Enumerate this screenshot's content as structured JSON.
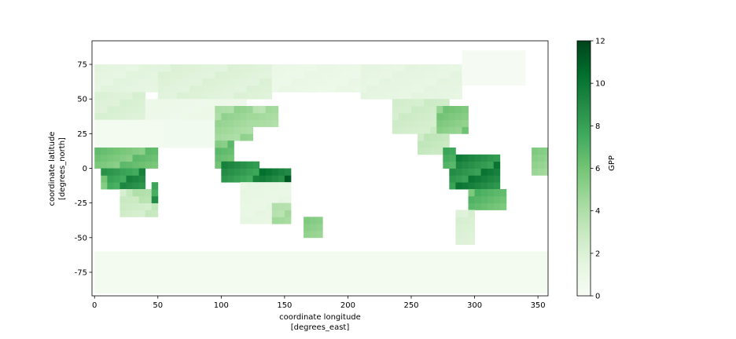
{
  "chart_data": {
    "type": "heatmap",
    "title": "",
    "xlabel_line1": "coordinate longitude",
    "xlabel_line2": "[degrees_east]",
    "ylabel_line1": "coordinate latitude",
    "ylabel_line2": "[degrees_north]",
    "xlim": [
      -2,
      358
    ],
    "ylim": [
      -92,
      92
    ],
    "xticks": [
      0,
      50,
      100,
      150,
      200,
      250,
      300,
      350
    ],
    "yticks": [
      -75,
      -50,
      -25,
      0,
      25,
      50,
      75
    ],
    "colorbar": {
      "label": "GPP",
      "vmin": 0,
      "vmax": 12,
      "ticks": [
        0,
        2,
        4,
        6,
        8,
        10,
        12
      ],
      "cmap": "Greens"
    },
    "grid": false,
    "cell_size_deg": [
      5,
      5
    ],
    "regions": [
      {
        "lon": [
          0,
          360
        ],
        "lat": [
          -90,
          -60
        ],
        "gpp": 0.3
      },
      {
        "lon": [
          0,
          50
        ],
        "lat": [
          55,
          75
        ],
        "gpp": 1.5
      },
      {
        "lon": [
          50,
          140
        ],
        "lat": [
          50,
          75
        ],
        "gpp": 1.8
      },
      {
        "lon": [
          140,
          210
        ],
        "lat": [
          55,
          75
        ],
        "gpp": 1.0
      },
      {
        "lon": [
          210,
          290
        ],
        "lat": [
          50,
          75
        ],
        "gpp": 1.4
      },
      {
        "lon": [
          290,
          340
        ],
        "lat": [
          60,
          82
        ],
        "gpp": 0.2
      },
      {
        "lon": [
          0,
          40
        ],
        "lat": [
          35,
          55
        ],
        "gpp": 2.0
      },
      {
        "lon": [
          40,
          120
        ],
        "lat": [
          30,
          50
        ],
        "gpp": 0.8
      },
      {
        "lon": [
          0,
          55
        ],
        "lat": [
          15,
          35
        ],
        "gpp": 0.3
      },
      {
        "lon": [
          55,
          95
        ],
        "lat": [
          15,
          35
        ],
        "gpp": 0.5
      },
      {
        "lon": [
          95,
          125
        ],
        "lat": [
          20,
          45
        ],
        "gpp": 4.5
      },
      {
        "lon": [
          125,
          145
        ],
        "lat": [
          30,
          45
        ],
        "gpp": 4.0
      },
      {
        "lon": [
          235,
          280
        ],
        "lat": [
          25,
          50
        ],
        "gpp": 2.5
      },
      {
        "lon": [
          270,
          295
        ],
        "lat": [
          25,
          45
        ],
        "gpp": 5.5
      },
      {
        "lon": [
          255,
          280
        ],
        "lat": [
          10,
          25
        ],
        "gpp": 3.0
      },
      {
        "lon": [
          0,
          50
        ],
        "lat": [
          0,
          15
        ],
        "gpp": 6.0
      },
      {
        "lon": [
          5,
          40
        ],
        "lat": [
          -15,
          0
        ],
        "gpp": 8.5
      },
      {
        "lon": [
          20,
          50
        ],
        "lat": [
          -35,
          -15
        ],
        "gpp": 3.5
      },
      {
        "lon": [
          45,
          50
        ],
        "lat": [
          -25,
          -12
        ],
        "gpp": 8.0
      },
      {
        "lon": [
          95,
          110
        ],
        "lat": [
          0,
          20
        ],
        "gpp": 6.0
      },
      {
        "lon": [
          100,
          130
        ],
        "lat": [
          -10,
          5
        ],
        "gpp": 8.5
      },
      {
        "lon": [
          130,
          155
        ],
        "lat": [
          -10,
          0
        ],
        "gpp": 10.0
      },
      {
        "lon": [
          115,
          155
        ],
        "lat": [
          -40,
          -10
        ],
        "gpp": 1.2
      },
      {
        "lon": [
          140,
          155
        ],
        "lat": [
          -40,
          -25
        ],
        "gpp": 4.0
      },
      {
        "lon": [
          165,
          180
        ],
        "lat": [
          -50,
          -35
        ],
        "gpp": 5.0
      },
      {
        "lon": [
          280,
          320
        ],
        "lat": [
          -15,
          10
        ],
        "gpp": 9.0
      },
      {
        "lon": [
          295,
          325
        ],
        "lat": [
          -30,
          -15
        ],
        "gpp": 6.5
      },
      {
        "lon": [
          285,
          300
        ],
        "lat": [
          -55,
          -30
        ],
        "gpp": 2.0
      },
      {
        "lon": [
          275,
          285
        ],
        "lat": [
          0,
          15
        ],
        "gpp": 7.0
      },
      {
        "lon": [
          345,
          360
        ],
        "lat": [
          -5,
          15
        ],
        "gpp": 5.0
      }
    ]
  }
}
